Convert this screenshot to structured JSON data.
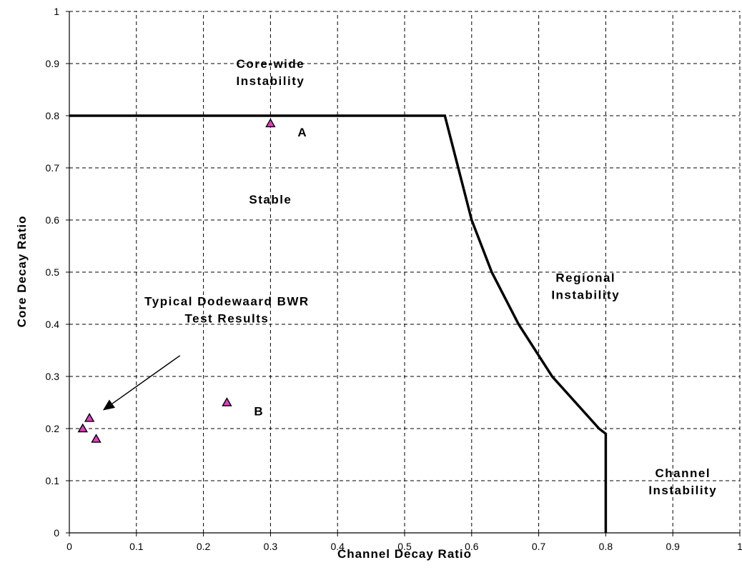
{
  "chart_data": {
    "type": "scatter",
    "xlabel": "Channel Decay Ratio",
    "ylabel": "Core Decay Ratio",
    "xlim": [
      0,
      1
    ],
    "ylim": [
      0,
      1
    ],
    "x_ticks": [
      "0",
      "0.1",
      "0.2",
      "0.3",
      "0.4",
      "0.5",
      "0.6",
      "0.7",
      "0.8",
      "0.9",
      "1"
    ],
    "y_ticks": [
      "0",
      "0.1",
      "0.2",
      "0.3",
      "0.4",
      "0.5",
      "0.6",
      "0.7",
      "0.8",
      "0.9",
      "1"
    ],
    "grid": true,
    "stability_boundary": {
      "x": [
        0,
        0.56,
        0.6,
        0.63,
        0.67,
        0.72,
        0.79,
        0.8,
        0.8
      ],
      "y": [
        0.8,
        0.8,
        0.6,
        0.5,
        0.4,
        0.3,
        0.2,
        0.19,
        0
      ]
    },
    "points": [
      {
        "x": 0.3,
        "y": 0.785,
        "label": "A"
      },
      {
        "x": 0.235,
        "y": 0.25,
        "label": "B"
      },
      {
        "x": 0.02,
        "y": 0.2,
        "label": ""
      },
      {
        "x": 0.03,
        "y": 0.22,
        "label": ""
      },
      {
        "x": 0.04,
        "y": 0.18,
        "label": ""
      }
    ],
    "marker_color": "#e040c0",
    "region_labels": [
      {
        "lines": [
          "Core-wide",
          "Instability"
        ],
        "x": 0.3,
        "y": 0.9
      },
      {
        "lines": [
          "Stable"
        ],
        "x": 0.3,
        "y": 0.64
      },
      {
        "lines": [
          "Regional",
          "Instability"
        ],
        "x": 0.77,
        "y": 0.49
      },
      {
        "lines": [
          "Channel",
          "Instability"
        ],
        "x": 0.915,
        "y": 0.115
      }
    ],
    "annotation": {
      "lines": [
        "Typical Dodewaard BWR",
        "Test Results"
      ],
      "x": 0.235,
      "y": 0.42,
      "arrow_from": [
        0.165,
        0.34
      ],
      "arrow_to": [
        0.05,
        0.235
      ]
    }
  }
}
